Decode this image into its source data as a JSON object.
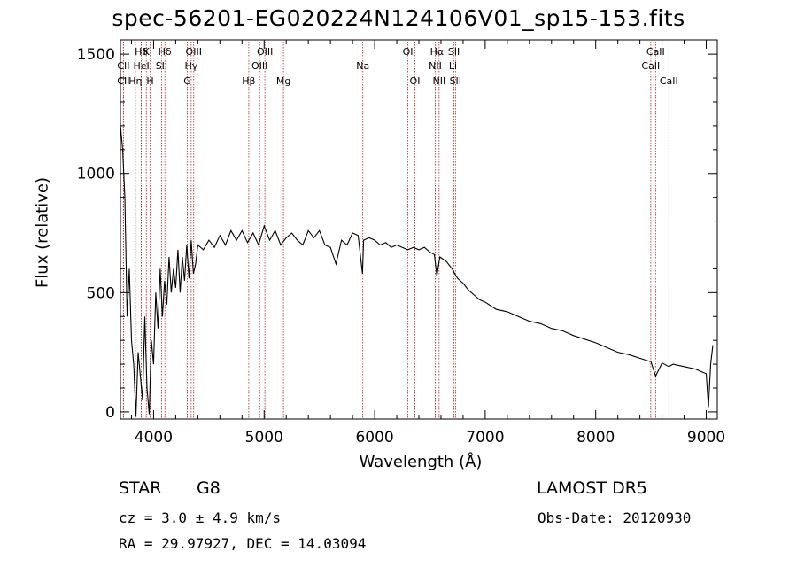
{
  "title": "spec-56201-EG020224N124106V01_sp15-153.fits",
  "info": {
    "class": "STAR",
    "subclass": "G8",
    "cz": "cz = 3.0 ± 4.9 km/s",
    "radec": "RA =  29.97927, DEC =  14.03094",
    "survey": "LAMOST  DR5",
    "obsdate": "Obs-Date: 20120930"
  },
  "chart_data": {
    "type": "line",
    "xlabel": "Wavelength (Å)",
    "ylabel": "Flux (relative)",
    "xlim": [
      3700,
      9100
    ],
    "ylim": [
      -30,
      1560
    ],
    "xticks": [
      4000,
      5000,
      6000,
      7000,
      8000,
      9000
    ],
    "yticks": [
      0,
      500,
      1000,
      1500
    ],
    "grid": false,
    "line_color": "#000000",
    "marker_color": "#b22222",
    "lines": [
      {
        "name": "Hδ",
        "wave": 3889,
        "row": 0
      },
      {
        "name": "K",
        "wave": 3934,
        "row": 0
      },
      {
        "name": "Hδ",
        "wave": 4102,
        "row": 0
      },
      {
        "name": "OIII",
        "wave": 4363,
        "row": 0
      },
      {
        "name": "OIII",
        "wave": 5007,
        "row": 0
      },
      {
        "name": "OI",
        "wave": 6300,
        "row": 0
      },
      {
        "name": "Hα",
        "wave": 6563,
        "row": 0
      },
      {
        "name": "SII",
        "wave": 6717,
        "row": 0
      },
      {
        "name": "CaII",
        "wave": 8542,
        "row": 0
      },
      {
        "name": "CII",
        "wave": 3727,
        "row": 1
      },
      {
        "name": "HeI",
        "wave": 3889,
        "row": 1
      },
      {
        "name": "SII",
        "wave": 4072,
        "row": 1
      },
      {
        "name": "Hγ",
        "wave": 4340,
        "row": 1
      },
      {
        "name": "OIII",
        "wave": 4959,
        "row": 1
      },
      {
        "name": "Na",
        "wave": 5893,
        "row": 1
      },
      {
        "name": "NII",
        "wave": 6548,
        "row": 1
      },
      {
        "name": "Li",
        "wave": 6708,
        "row": 1
      },
      {
        "name": "CaII",
        "wave": 8498,
        "row": 1
      },
      {
        "name": "CII",
        "wave": 3727,
        "row": 2
      },
      {
        "name": "Hη",
        "wave": 3835,
        "row": 2
      },
      {
        "name": "H",
        "wave": 3969,
        "row": 2
      },
      {
        "name": "G",
        "wave": 4305,
        "row": 2
      },
      {
        "name": "Hβ",
        "wave": 4861,
        "row": 2
      },
      {
        "name": "Mg",
        "wave": 5175,
        "row": 2
      },
      {
        "name": "OI",
        "wave": 6364,
        "row": 2
      },
      {
        "name": "NII",
        "wave": 6583,
        "row": 2
      },
      {
        "name": "SII",
        "wave": 6731,
        "row": 2
      },
      {
        "name": "CaII",
        "wave": 8662,
        "row": 2
      }
    ],
    "series": [
      {
        "x": [
          3700,
          3720,
          3740,
          3760,
          3780,
          3800,
          3820,
          3840,
          3860,
          3880,
          3900,
          3920,
          3940,
          3960,
          3980,
          4000,
          4020,
          4040,
          4060,
          4080,
          4100,
          4120,
          4140,
          4160,
          4180,
          4200,
          4220,
          4240,
          4260,
          4280,
          4300,
          4320,
          4340,
          4360,
          4380,
          4400,
          4450,
          4500,
          4550,
          4600,
          4650,
          4700,
          4750,
          4800,
          4850,
          4900,
          4950,
          5000,
          5050,
          5100,
          5150,
          5200,
          5250,
          5300,
          5350,
          5400,
          5450,
          5500,
          5550,
          5600,
          5650,
          5700,
          5750,
          5800,
          5850,
          5890,
          5900,
          5950,
          6000,
          6050,
          6100,
          6150,
          6200,
          6250,
          6300,
          6350,
          6400,
          6450,
          6500,
          6540,
          6563,
          6590,
          6650,
          6700,
          6750,
          6800,
          6850,
          6900,
          6950,
          7000,
          7100,
          7200,
          7300,
          7400,
          7500,
          7600,
          7700,
          7800,
          7900,
          8000,
          8100,
          8200,
          8300,
          8400,
          8500,
          8542,
          8600,
          8662,
          8700,
          8800,
          8900,
          8950,
          9000,
          9020,
          9040,
          9060
        ],
        "y": [
          1200,
          1100,
          900,
          400,
          600,
          300,
          200,
          -20,
          250,
          150,
          50,
          400,
          100,
          -10,
          300,
          200,
          500,
          350,
          600,
          400,
          550,
          450,
          650,
          500,
          600,
          520,
          680,
          500,
          650,
          550,
          700,
          560,
          720,
          580,
          620,
          700,
          680,
          720,
          690,
          740,
          700,
          760,
          720,
          760,
          710,
          750,
          700,
          780,
          720,
          760,
          700,
          730,
          750,
          720,
          700,
          760,
          730,
          760,
          700,
          690,
          620,
          720,
          700,
          750,
          740,
          580,
          720,
          730,
          720,
          700,
          710,
          690,
          700,
          690,
          680,
          690,
          680,
          690,
          670,
          660,
          570,
          650,
          630,
          600,
          560,
          540,
          510,
          490,
          470,
          460,
          430,
          420,
          400,
          380,
          370,
          350,
          340,
          320,
          305,
          290,
          270,
          250,
          240,
          225,
          210,
          150,
          205,
          190,
          200,
          190,
          180,
          170,
          160,
          20,
          200,
          280
        ]
      }
    ]
  }
}
